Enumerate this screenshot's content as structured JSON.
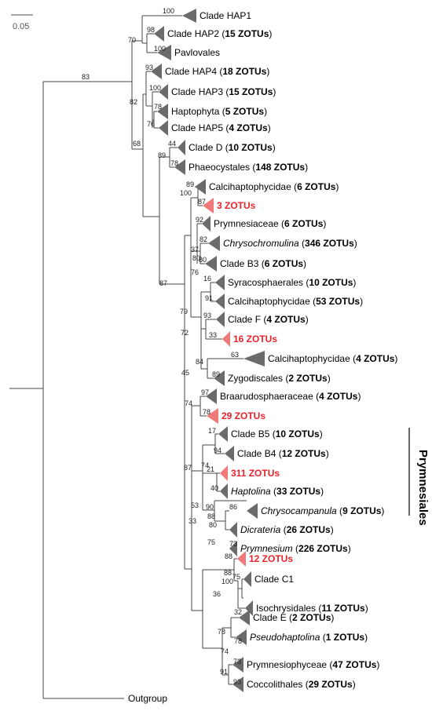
{
  "scale": {
    "value": "0.05"
  },
  "group": {
    "label": "Prymnesiales"
  },
  "outgroup": {
    "label": "Outgroup"
  },
  "colors": {
    "clade": "#6b6b6b",
    "highlight": "#f07a7a",
    "highlight_text": "#e8232a",
    "line": "#444444"
  },
  "clades": [
    {
      "pre": "Clade HAP1",
      "count": "",
      "post": ""
    },
    {
      "pre": "Clade HAP2 (",
      "count": "15 ZOTUs",
      "post": ")"
    },
    {
      "pre": "Pavlovales",
      "count": "",
      "post": ""
    },
    {
      "pre": "Clade HAP4 (",
      "count": "18 ZOTUs",
      "post": ")"
    },
    {
      "pre": "Clade HAP3 (",
      "count": "15 ZOTUs",
      "post": ")"
    },
    {
      "pre": "Haptophyta (",
      "count": "5 ZOTUs",
      "post": ")"
    },
    {
      "pre": "Clade HAP5 (",
      "count": "4 ZOTUs",
      "post": ")"
    },
    {
      "pre": "Clade D (",
      "count": "10 ZOTUs",
      "post": ")"
    },
    {
      "pre": "Phaeocystales (",
      "count": "148 ZOTUs",
      "post": ")"
    },
    {
      "pre": "Calcihaptophycidae (",
      "count": "6 ZOTUs",
      "post": ")"
    },
    {
      "pre": "",
      "count": "3 ZOTUs",
      "post": ""
    },
    {
      "pre": "Prymnesiaceae (",
      "count": "6 ZOTUs",
      "post": ")"
    },
    {
      "pre": "",
      "italic": "Chrysochromulina",
      "pre2": " (",
      "count": "346 ZOTUs",
      "post": ")"
    },
    {
      "pre": "Clade B3 (",
      "count": "6 ZOTUs",
      "post": ")"
    },
    {
      "pre": "Syracosphaerales (",
      "count": "10 ZOTUs",
      "post": ")"
    },
    {
      "pre": "Calcihaptophycidae (",
      "count": "53 ZOTUs",
      "post": ")"
    },
    {
      "pre": "Clade F (",
      "count": "4 ZOTUs",
      "post": ")"
    },
    {
      "pre": "",
      "count": "16 ZOTUs",
      "post": ""
    },
    {
      "pre": "Calcihaptophycidae (",
      "count": "4 ZOTUs",
      "post": ")"
    },
    {
      "pre": "Zygodiscales (",
      "count": "2 ZOTUs",
      "post": ")"
    },
    {
      "pre": "Braarudosphaeraceae (",
      "count": "4 ZOTUs",
      "post": ")"
    },
    {
      "pre": "",
      "count": "29 ZOTUs",
      "post": ""
    },
    {
      "pre": "Clade B5 (",
      "count": "10 ZOTUs",
      "post": ")"
    },
    {
      "pre": "Clade B4 (",
      "count": "12 ZOTUs",
      "post": ")"
    },
    {
      "pre": "",
      "count": "311 ZOTUs",
      "post": ""
    },
    {
      "pre": "",
      "italic": "Haptolina",
      "pre2": " (",
      "count": "33 ZOTUs",
      "post": ")"
    },
    {
      "pre": "",
      "italic": "Chrysocampanula",
      "pre2": " (",
      "count": "9 ZOTUs",
      "post": ")"
    },
    {
      "pre": "",
      "italic": "Dicrateria",
      "pre2": " (",
      "count": "26 ZOTUs",
      "post": ")"
    },
    {
      "pre": "",
      "italic": "Prymnesium",
      "pre2": " (",
      "count": "226 ZOTUs",
      "post": ")"
    },
    {
      "pre": "",
      "count": "12 ZOTUs",
      "post": ""
    },
    {
      "pre": "Clade C1",
      "count": "",
      "post": ""
    },
    {
      "pre": "Isochrysidales (",
      "count": "11 ZOTUs",
      "post": ")"
    },
    {
      "pre": "Clade E (",
      "count": "2 ZOTUs",
      "post": ")"
    },
    {
      "pre": "",
      "italic": "Pseudohaptolina",
      "pre2": " (",
      "count": "1 ZOTUs",
      "post": ")"
    },
    {
      "pre": "Prymnesiophyceae (",
      "count": "47 ZOTUs",
      "post": ")"
    },
    {
      "pre": "Coccolithales (",
      "count": "29 ZOTUs",
      "post": ")"
    }
  ],
  "bootstrap": [
    "100",
    "98",
    "70",
    "100",
    "93",
    "100",
    "82",
    "78",
    "76",
    "68",
    "83",
    "44",
    "89",
    "78",
    "89",
    "100",
    "87",
    "92",
    "82",
    "80",
    "37",
    "80",
    "76",
    "16",
    "91",
    "79",
    "93",
    "72",
    "33",
    "63",
    "84",
    "89",
    "45",
    "87",
    "74",
    "97",
    "78",
    "17",
    "94",
    "87",
    "74",
    "21",
    "40",
    "53",
    "86",
    "33",
    "90",
    "88",
    "80",
    "75",
    "73",
    "88",
    "88",
    "75",
    "100",
    "36",
    "32",
    "78",
    "78",
    "74",
    "73",
    "91",
    "93"
  ]
}
